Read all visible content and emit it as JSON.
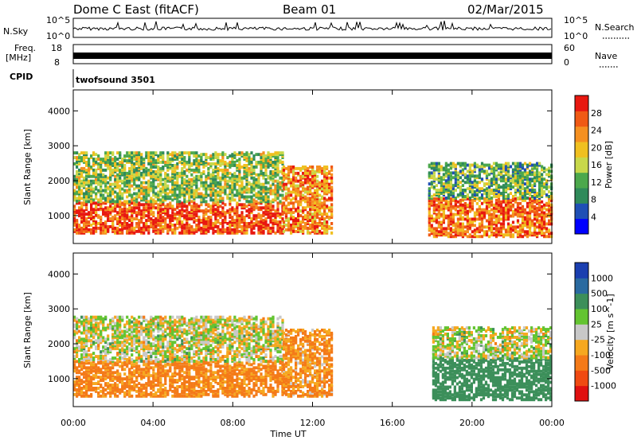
{
  "header": {
    "station": "Dome C East (fitACF)",
    "beam": "Beam 01",
    "date": "02/Mar/2015"
  },
  "top_panels": {
    "nsky_label": "N.Sky",
    "nsky_ticks": [
      "10^5",
      "10^0"
    ],
    "nsearch_label": "N.Search",
    "nsearch_ticks": [
      "10^5",
      "10^0"
    ],
    "freq_label_1": "Freq.",
    "freq_label_2": "[MHz]",
    "freq_ticks": [
      "18",
      "8"
    ],
    "nave_label": "Nave",
    "nave_ticks": [
      "60",
      "0"
    ],
    "cpid_label": "CPID",
    "cpid_text": "twofsound 3501"
  },
  "colors": {
    "power_scale": [
      "#0000ff",
      "#1f4fb5",
      "#2f8a5a",
      "#4ca84c",
      "#c8d84a",
      "#f0c020",
      "#f59020",
      "#f05a14",
      "#e81810"
    ],
    "velocity_scale": [
      "#e01010",
      "#f04a12",
      "#f47a18",
      "#f6a820",
      "#c8c8c8",
      "#63c431",
      "#3c8f5a",
      "#2a6aa0",
      "#1a3fb0"
    ]
  },
  "chart_data": [
    {
      "type": "heatmap",
      "title": "Power",
      "ylabel": "Slant Range [km]",
      "xlabel": "Time UT",
      "x_ticks": [
        "00:00",
        "04:00",
        "08:00",
        "12:00",
        "16:00",
        "20:00",
        "00:00"
      ],
      "y_ticks": [
        "1000",
        "2000",
        "3000",
        "4000"
      ],
      "ylim": [
        200,
        4600
      ],
      "xlim_hours": [
        0,
        24
      ],
      "colorbar_label": "Power [dB]",
      "colorbar_ticks": [
        "4",
        "8",
        "12",
        "16",
        "20",
        "24",
        "28"
      ],
      "colorbar_range": [
        0,
        30
      ],
      "regions": [
        {
          "t": [
            0.0,
            10.5
          ],
          "r": [
            500,
            1400
          ],
          "value": 26
        },
        {
          "t": [
            0.0,
            10.5
          ],
          "r": [
            1400,
            2800
          ],
          "value": 14
        },
        {
          "t": [
            10.5,
            13.0
          ],
          "r": [
            500,
            2400
          ],
          "value": 22
        },
        {
          "t": [
            17.8,
            24.0
          ],
          "r": [
            400,
            1500
          ],
          "value": 24
        },
        {
          "t": [
            17.8,
            24.0
          ],
          "r": [
            1500,
            2500
          ],
          "value": 12
        }
      ]
    },
    {
      "type": "heatmap",
      "title": "Velocity",
      "ylabel": "Slant Range [km]",
      "xlabel": "Time UT",
      "x_ticks": [
        "00:00",
        "04:00",
        "08:00",
        "12:00",
        "16:00",
        "20:00",
        "00:00"
      ],
      "y_ticks": [
        "1000",
        "2000",
        "3000",
        "4000"
      ],
      "ylim": [
        200,
        4600
      ],
      "xlim_hours": [
        0,
        24
      ],
      "colorbar_label": "Velocity [m s^-1]",
      "colorbar_ticks": [
        "1000",
        "500",
        "100",
        "25",
        "-25",
        "-100",
        "-500",
        "-1000"
      ],
      "regions": [
        {
          "t": [
            0.0,
            10.5
          ],
          "r": [
            500,
            1500
          ],
          "value": -150
        },
        {
          "t": [
            0.0,
            10.5
          ],
          "r": [
            1500,
            2800
          ],
          "value": 0
        },
        {
          "t": [
            10.5,
            13.0
          ],
          "r": [
            500,
            2400
          ],
          "value": -120
        },
        {
          "t": [
            18.0,
            24.0
          ],
          "r": [
            400,
            1600
          ],
          "value": 300
        },
        {
          "t": [
            18.0,
            24.0
          ],
          "r": [
            1600,
            2500
          ],
          "value": 0
        }
      ]
    }
  ]
}
